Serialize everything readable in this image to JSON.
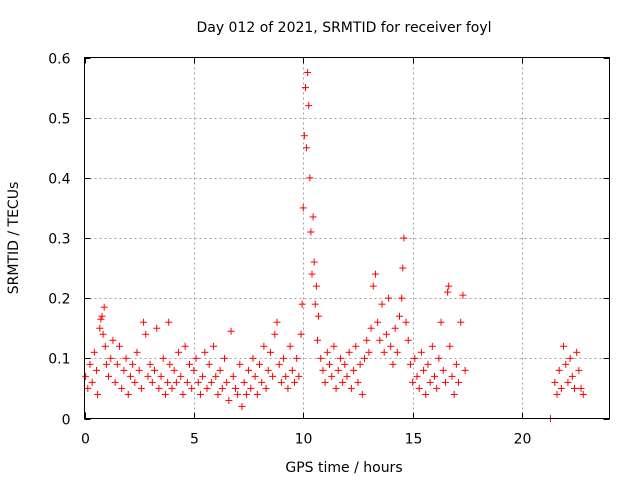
{
  "chart_data": {
    "type": "scatter",
    "title": "Day 012 of 2021, SRMTID for receiver foyl",
    "xlabel": "GPS time / hours",
    "ylabel": "SRMTID / TECUs",
    "xlim": [
      0,
      24
    ],
    "ylim": [
      0,
      0.6
    ],
    "xticks": [
      0,
      5,
      10,
      15,
      20
    ],
    "xtick_labels": [
      "0",
      "5",
      "10",
      "15",
      "20"
    ],
    "yticks": [
      0,
      0.1,
      0.2,
      0.3,
      0.4,
      0.5,
      0.6
    ],
    "ytick_labels": [
      "0",
      "0.1",
      "0.2",
      "0.3",
      "0.4",
      "0.5",
      "0.6"
    ],
    "grid": true,
    "marker": "+",
    "color": "#ff0000",
    "series": [
      {
        "name": "SRMTID",
        "points": [
          [
            0.05,
            0.07
          ],
          [
            0.15,
            0.05
          ],
          [
            0.25,
            0.09
          ],
          [
            0.35,
            0.06
          ],
          [
            0.45,
            0.11
          ],
          [
            0.55,
            0.08
          ],
          [
            0.6,
            0.04
          ],
          [
            0.7,
            0.15
          ],
          [
            0.75,
            0.165
          ],
          [
            0.8,
            0.17
          ],
          [
            0.85,
            0.14
          ],
          [
            0.9,
            0.185
          ],
          [
            0.95,
            0.12
          ],
          [
            1.0,
            0.09
          ],
          [
            1.1,
            0.07
          ],
          [
            1.2,
            0.1
          ],
          [
            1.3,
            0.13
          ],
          [
            1.4,
            0.06
          ],
          [
            1.5,
            0.09
          ],
          [
            1.6,
            0.12
          ],
          [
            1.7,
            0.05
          ],
          [
            1.8,
            0.08
          ],
          [
            1.9,
            0.1
          ],
          [
            2.0,
            0.04
          ],
          [
            2.1,
            0.07
          ],
          [
            2.2,
            0.09
          ],
          [
            2.3,
            0.06
          ],
          [
            2.4,
            0.11
          ],
          [
            2.5,
            0.08
          ],
          [
            2.6,
            0.05
          ],
          [
            2.7,
            0.16
          ],
          [
            2.8,
            0.14
          ],
          [
            2.9,
            0.07
          ],
          [
            3.0,
            0.09
          ],
          [
            3.1,
            0.06
          ],
          [
            3.2,
            0.08
          ],
          [
            3.3,
            0.15
          ],
          [
            3.4,
            0.05
          ],
          [
            3.5,
            0.07
          ],
          [
            3.6,
            0.1
          ],
          [
            3.7,
            0.04
          ],
          [
            3.8,
            0.06
          ],
          [
            3.85,
            0.16
          ],
          [
            3.9,
            0.09
          ],
          [
            4.0,
            0.05
          ],
          [
            4.1,
            0.08
          ],
          [
            4.2,
            0.06
          ],
          [
            4.3,
            0.11
          ],
          [
            4.4,
            0.07
          ],
          [
            4.5,
            0.04
          ],
          [
            4.6,
            0.12
          ],
          [
            4.7,
            0.06
          ],
          [
            4.8,
            0.09
          ],
          [
            4.9,
            0.05
          ],
          [
            5.0,
            0.08
          ],
          [
            5.1,
            0.1
          ],
          [
            5.2,
            0.06
          ],
          [
            5.3,
            0.04
          ],
          [
            5.4,
            0.07
          ],
          [
            5.5,
            0.11
          ],
          [
            5.6,
            0.05
          ],
          [
            5.7,
            0.09
          ],
          [
            5.8,
            0.06
          ],
          [
            5.9,
            0.12
          ],
          [
            6.0,
            0.07
          ],
          [
            6.1,
            0.04
          ],
          [
            6.2,
            0.08
          ],
          [
            6.3,
            0.05
          ],
          [
            6.4,
            0.1
          ],
          [
            6.5,
            0.06
          ],
          [
            6.6,
            0.03
          ],
          [
            6.7,
            0.145
          ],
          [
            6.8,
            0.07
          ],
          [
            6.9,
            0.05
          ],
          [
            7.0,
            0.04
          ],
          [
            7.1,
            0.09
          ],
          [
            7.2,
            0.02
          ],
          [
            7.3,
            0.06
          ],
          [
            7.4,
            0.04
          ],
          [
            7.5,
            0.08
          ],
          [
            7.6,
            0.05
          ],
          [
            7.7,
            0.1
          ],
          [
            7.8,
            0.07
          ],
          [
            7.9,
            0.04
          ],
          [
            8.0,
            0.09
          ],
          [
            8.1,
            0.06
          ],
          [
            8.2,
            0.12
          ],
          [
            8.3,
            0.05
          ],
          [
            8.4,
            0.08
          ],
          [
            8.5,
            0.11
          ],
          [
            8.6,
            0.07
          ],
          [
            8.7,
            0.14
          ],
          [
            8.8,
            0.16
          ],
          [
            8.9,
            0.09
          ],
          [
            9.0,
            0.06
          ],
          [
            9.1,
            0.1
          ],
          [
            9.2,
            0.07
          ],
          [
            9.3,
            0.05
          ],
          [
            9.4,
            0.12
          ],
          [
            9.5,
            0.08
          ],
          [
            9.6,
            0.06
          ],
          [
            9.7,
            0.1
          ],
          [
            9.8,
            0.07
          ],
          [
            9.9,
            0.14
          ],
          [
            9.95,
            0.19
          ],
          [
            10.0,
            0.35
          ],
          [
            10.05,
            0.47
          ],
          [
            10.1,
            0.55
          ],
          [
            10.15,
            0.45
          ],
          [
            10.2,
            0.575
          ],
          [
            10.25,
            0.52
          ],
          [
            10.3,
            0.4
          ],
          [
            10.35,
            0.31
          ],
          [
            10.4,
            0.24
          ],
          [
            10.45,
            0.335
          ],
          [
            10.5,
            0.26
          ],
          [
            10.55,
            0.19
          ],
          [
            10.6,
            0.22
          ],
          [
            10.65,
            0.13
          ],
          [
            10.7,
            0.17
          ],
          [
            10.8,
            0.1
          ],
          [
            10.9,
            0.08
          ],
          [
            11.0,
            0.06
          ],
          [
            11.1,
            0.11
          ],
          [
            11.2,
            0.09
          ],
          [
            11.3,
            0.07
          ],
          [
            11.4,
            0.12
          ],
          [
            11.5,
            0.05
          ],
          [
            11.6,
            0.08
          ],
          [
            11.7,
            0.1
          ],
          [
            11.8,
            0.06
          ],
          [
            11.9,
            0.09
          ],
          [
            12.0,
            0.07
          ],
          [
            12.1,
            0.11
          ],
          [
            12.2,
            0.05
          ],
          [
            12.3,
            0.08
          ],
          [
            12.4,
            0.12
          ],
          [
            12.5,
            0.06
          ],
          [
            12.6,
            0.09
          ],
          [
            12.7,
            0.04
          ],
          [
            12.8,
            0.1
          ],
          [
            12.9,
            0.13
          ],
          [
            13.0,
            0.11
          ],
          [
            13.1,
            0.15
          ],
          [
            13.2,
            0.22
          ],
          [
            13.3,
            0.24
          ],
          [
            13.4,
            0.16
          ],
          [
            13.5,
            0.13
          ],
          [
            13.6,
            0.19
          ],
          [
            13.7,
            0.11
          ],
          [
            13.8,
            0.14
          ],
          [
            13.9,
            0.2
          ],
          [
            14.0,
            0.12
          ],
          [
            14.1,
            0.09
          ],
          [
            14.2,
            0.15
          ],
          [
            14.3,
            0.11
          ],
          [
            14.4,
            0.17
          ],
          [
            14.5,
            0.2
          ],
          [
            14.55,
            0.25
          ],
          [
            14.6,
            0.3
          ],
          [
            14.7,
            0.16
          ],
          [
            14.8,
            0.13
          ],
          [
            14.9,
            0.09
          ],
          [
            15.0,
            0.06
          ],
          [
            15.1,
            0.1
          ],
          [
            15.2,
            0.07
          ],
          [
            15.3,
            0.05
          ],
          [
            15.4,
            0.11
          ],
          [
            15.5,
            0.08
          ],
          [
            15.6,
            0.04
          ],
          [
            15.7,
            0.09
          ],
          [
            15.8,
            0.06
          ],
          [
            15.9,
            0.12
          ],
          [
            16.0,
            0.07
          ],
          [
            16.1,
            0.05
          ],
          [
            16.2,
            0.1
          ],
          [
            16.3,
            0.16
          ],
          [
            16.4,
            0.08
          ],
          [
            16.5,
            0.06
          ],
          [
            16.6,
            0.21
          ],
          [
            16.65,
            0.22
          ],
          [
            16.7,
            0.12
          ],
          [
            16.8,
            0.07
          ],
          [
            16.9,
            0.04
          ],
          [
            17.0,
            0.09
          ],
          [
            17.1,
            0.06
          ],
          [
            17.2,
            0.16
          ],
          [
            17.3,
            0.205
          ],
          [
            17.4,
            0.08
          ],
          [
            21.3,
            0.0
          ],
          [
            21.5,
            0.06
          ],
          [
            21.6,
            0.04
          ],
          [
            21.7,
            0.08
          ],
          [
            21.8,
            0.05
          ],
          [
            21.9,
            0.12
          ],
          [
            22.0,
            0.09
          ],
          [
            22.1,
            0.06
          ],
          [
            22.2,
            0.1
          ],
          [
            22.3,
            0.07
          ],
          [
            22.4,
            0.05
          ],
          [
            22.5,
            0.11
          ],
          [
            22.6,
            0.08
          ],
          [
            22.7,
            0.05
          ],
          [
            22.8,
            0.04
          ]
        ]
      }
    ]
  }
}
